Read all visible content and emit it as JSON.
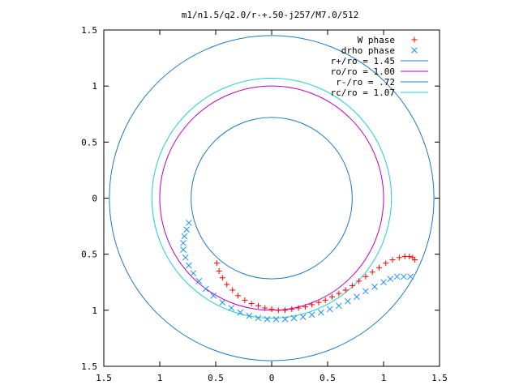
{
  "chart_data": {
    "type": "scatter",
    "title": "m1/n1.5/q2.0/r-+.50-j257/M7.0/512",
    "xlabel": "",
    "ylabel": "",
    "xlim": [
      -1.5,
      1.5
    ],
    "ylim": [
      -1.5,
      1.5
    ],
    "x_ticks": [
      {
        "value": -1.5,
        "label": "1.5"
      },
      {
        "value": -1.0,
        "label": "1"
      },
      {
        "value": -0.5,
        "label": "0.5"
      },
      {
        "value": 0.0,
        "label": "0"
      },
      {
        "value": 0.5,
        "label": "0.5"
      },
      {
        "value": 1.0,
        "label": "1"
      },
      {
        "value": 1.5,
        "label": "1.5"
      }
    ],
    "y_ticks": [
      {
        "value": 1.5,
        "label": "1.5"
      },
      {
        "value": 1.0,
        "label": "1"
      },
      {
        "value": 0.5,
        "label": "0.5"
      },
      {
        "value": 0.0,
        "label": "0"
      },
      {
        "value": -0.5,
        "label": "0.5"
      },
      {
        "value": -1.0,
        "label": "1"
      },
      {
        "value": -1.5,
        "label": "1.5"
      }
    ],
    "grid": false,
    "legend_position": "top-right",
    "scatter_series": [
      {
        "name": "W phase",
        "marker": "plus",
        "color": "#ff0000",
        "points": [
          [
            -0.49,
            -0.58
          ],
          [
            -0.47,
            -0.65
          ],
          [
            -0.44,
            -0.71
          ],
          [
            -0.4,
            -0.77
          ],
          [
            -0.35,
            -0.82
          ],
          [
            -0.3,
            -0.87
          ],
          [
            -0.24,
            -0.91
          ],
          [
            -0.18,
            -0.94
          ],
          [
            -0.12,
            -0.96
          ],
          [
            -0.06,
            -0.98
          ],
          [
            0.0,
            -0.99
          ],
          [
            0.06,
            -1.0
          ],
          [
            0.12,
            -1.0
          ],
          [
            0.18,
            -0.99
          ],
          [
            0.24,
            -0.98
          ],
          [
            0.3,
            -0.97
          ],
          [
            0.36,
            -0.95
          ],
          [
            0.42,
            -0.93
          ],
          [
            0.48,
            -0.91
          ],
          [
            0.54,
            -0.88
          ],
          [
            0.6,
            -0.85
          ],
          [
            0.66,
            -0.82
          ],
          [
            0.72,
            -0.78
          ],
          [
            0.78,
            -0.74
          ],
          [
            0.84,
            -0.7
          ],
          [
            0.9,
            -0.66
          ],
          [
            0.96,
            -0.62
          ],
          [
            1.02,
            -0.58
          ],
          [
            1.08,
            -0.55
          ],
          [
            1.14,
            -0.53
          ],
          [
            1.19,
            -0.52
          ],
          [
            1.23,
            -0.52
          ],
          [
            1.26,
            -0.53
          ],
          [
            1.28,
            -0.55
          ]
        ]
      },
      {
        "name": "drho phase",
        "marker": "cross",
        "color": "#1e90ff",
        "points": [
          [
            -0.74,
            -0.22
          ],
          [
            -0.76,
            -0.28
          ],
          [
            -0.78,
            -0.34
          ],
          [
            -0.79,
            -0.4
          ],
          [
            -0.79,
            -0.46
          ],
          [
            -0.77,
            -0.53
          ],
          [
            -0.74,
            -0.6
          ],
          [
            -0.7,
            -0.67
          ],
          [
            -0.65,
            -0.74
          ],
          [
            -0.59,
            -0.81
          ],
          [
            -0.52,
            -0.87
          ],
          [
            -0.44,
            -0.93
          ],
          [
            -0.36,
            -0.98
          ],
          [
            -0.28,
            -1.02
          ],
          [
            -0.2,
            -1.05
          ],
          [
            -0.12,
            -1.07
          ],
          [
            -0.04,
            -1.08
          ],
          [
            0.04,
            -1.08
          ],
          [
            0.12,
            -1.08
          ],
          [
            0.2,
            -1.07
          ],
          [
            0.28,
            -1.06
          ],
          [
            0.36,
            -1.04
          ],
          [
            0.44,
            -1.02
          ],
          [
            0.52,
            -0.99
          ],
          [
            0.6,
            -0.96
          ],
          [
            0.68,
            -0.92
          ],
          [
            0.76,
            -0.88
          ],
          [
            0.84,
            -0.83
          ],
          [
            0.92,
            -0.79
          ],
          [
            1.0,
            -0.75
          ],
          [
            1.06,
            -0.72
          ],
          [
            1.12,
            -0.7
          ],
          [
            1.18,
            -0.7
          ],
          [
            1.24,
            -0.7
          ]
        ]
      }
    ],
    "circle_series": [
      {
        "name": "r+/ro = 1.45",
        "radius": 1.45,
        "color": "#1f78c1"
      },
      {
        "name": "ro/ro = 1.00",
        "radius": 1.0,
        "color": "#c000c0"
      },
      {
        "name": "r-/ro = .72",
        "radius": 0.72,
        "color": "#1f78c1"
      },
      {
        "name": "rc/ro = 1.07",
        "radius": 1.07,
        "color": "#20d0d0"
      }
    ]
  }
}
